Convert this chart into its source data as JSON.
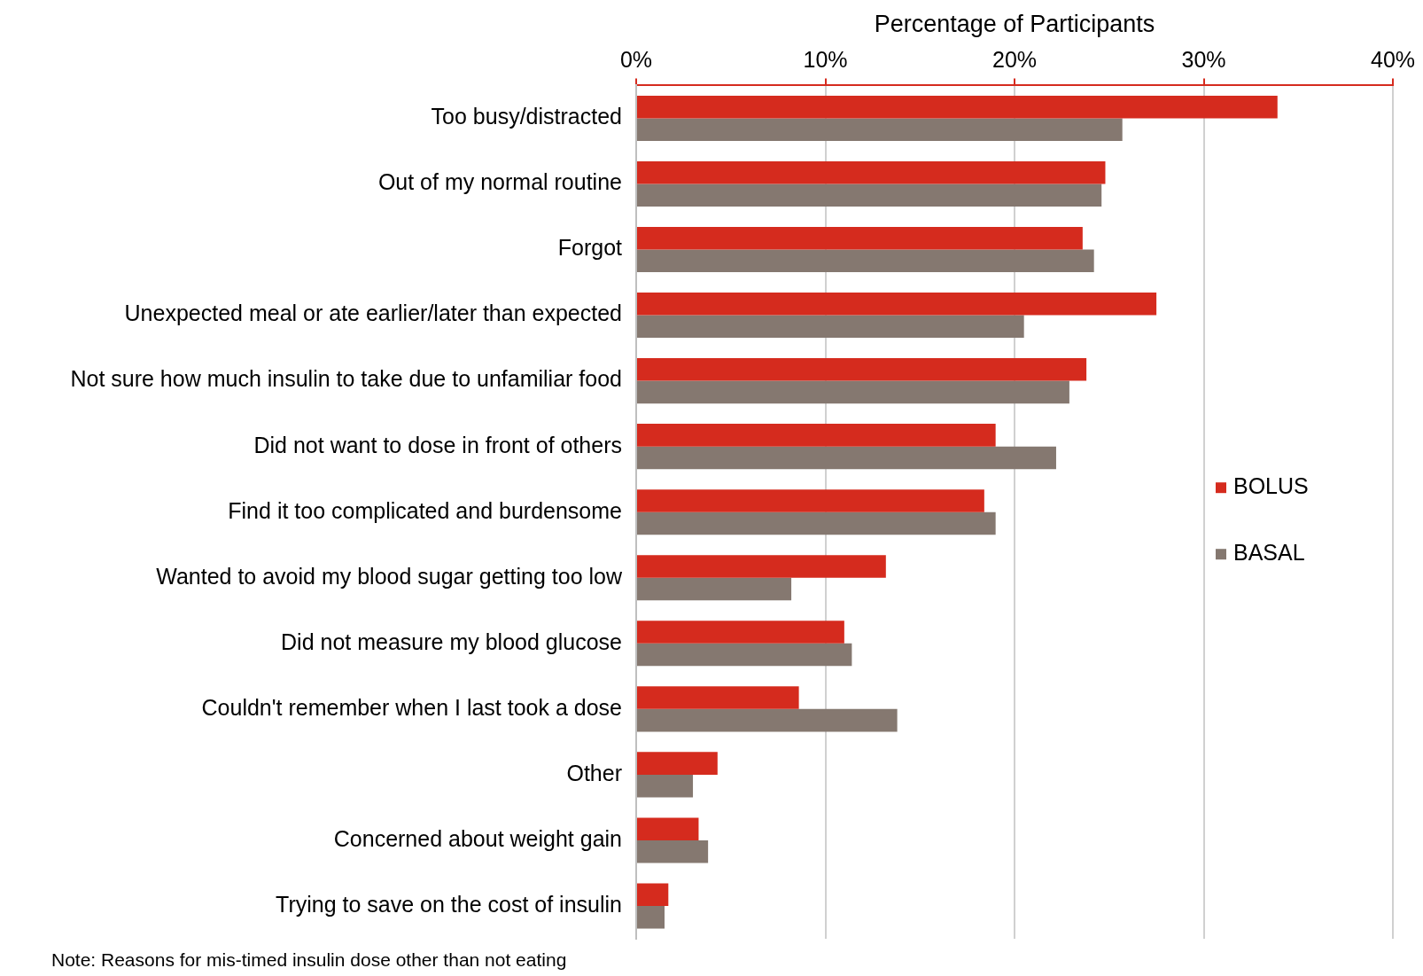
{
  "chart_data": {
    "type": "bar",
    "orientation": "horizontal",
    "xlabel": "Percentage of Participants",
    "categories": [
      "Too busy/distracted",
      "Out of my normal routine",
      "Forgot",
      "Unexpected meal or ate earlier/later than expected",
      "Not sure how much insulin to take due to unfamiliar food",
      "Did not want to dose in front of others",
      "Find it too complicated and burdensome",
      "Wanted to avoid my blood sugar getting too low",
      "Did not measure my blood glucose",
      "Couldn't remember when I last took a dose",
      "Other",
      "Concerned about weight gain",
      "Trying to save on the cost of insulin"
    ],
    "series": [
      {
        "name": "BOLUS",
        "color": "#d52b1e",
        "values": [
          33.9,
          24.8,
          23.6,
          27.5,
          23.8,
          19.0,
          18.4,
          13.2,
          11.0,
          8.6,
          4.3,
          3.3,
          1.7
        ]
      },
      {
        "name": "BASAL",
        "color": "#857870",
        "values": [
          25.7,
          24.6,
          24.2,
          20.5,
          22.9,
          22.2,
          19.0,
          8.2,
          11.4,
          13.8,
          3.0,
          3.8,
          1.5
        ]
      }
    ],
    "xlim": [
      0,
      40
    ],
    "xticks": [
      {
        "value": 0,
        "label": "0%"
      },
      {
        "value": 10,
        "label": "10%"
      },
      {
        "value": 20,
        "label": "20%"
      },
      {
        "value": 30,
        "label": "30%"
      },
      {
        "value": 40,
        "label": "40%"
      }
    ],
    "grid": "x",
    "legend": "right",
    "annotations": [
      "Note: Reasons for mis-timed insulin dose other than not eating"
    ]
  }
}
